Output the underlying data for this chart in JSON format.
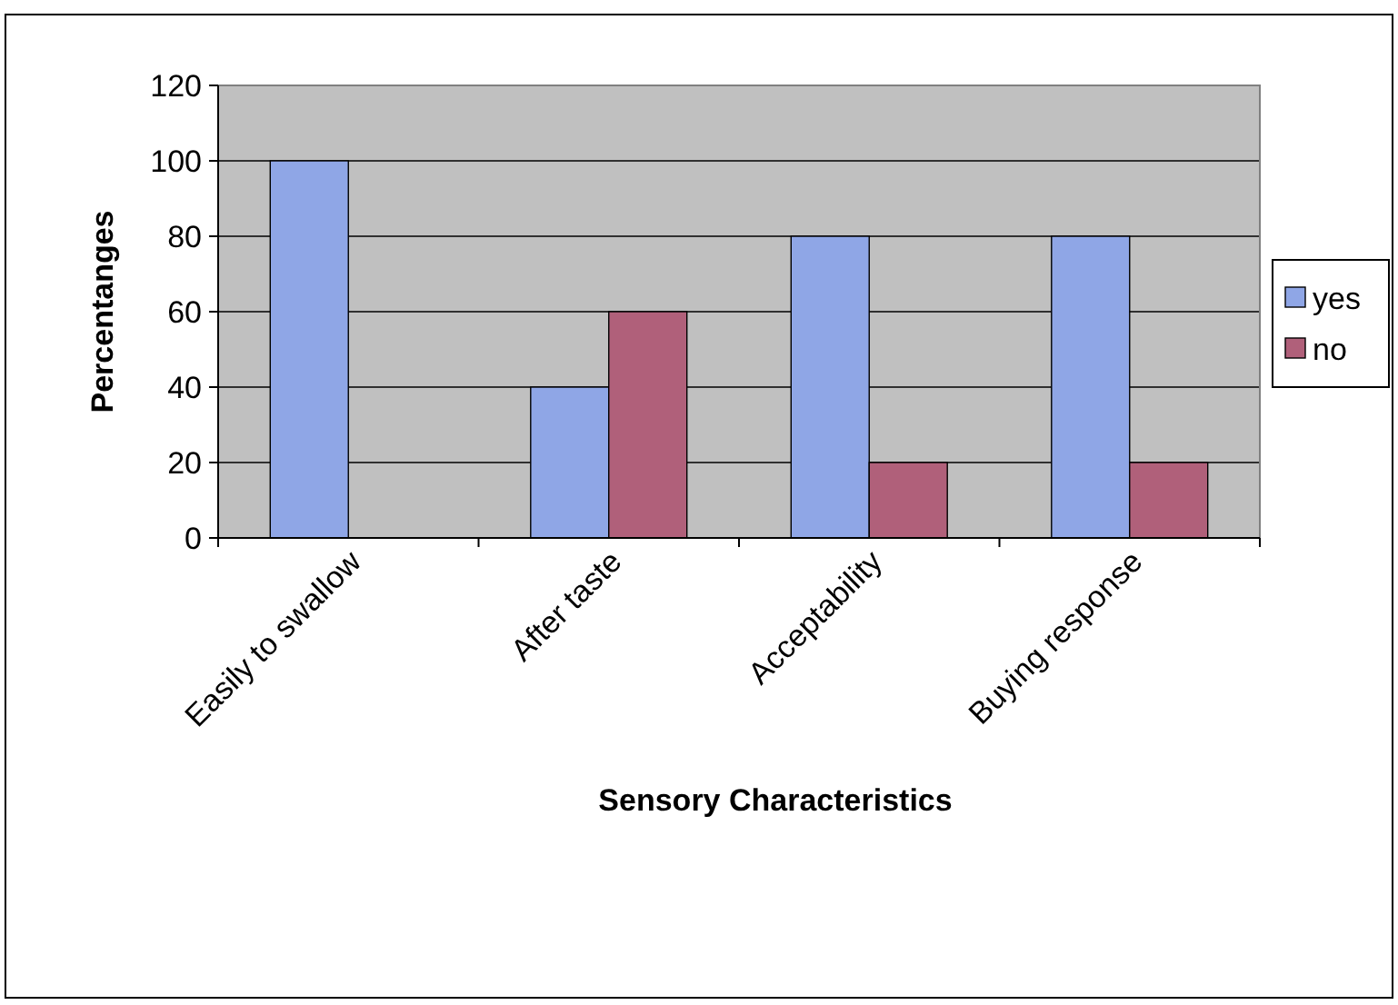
{
  "chart_data": {
    "type": "bar",
    "xlabel": "Sensory Characteristics",
    "ylabel": "Percentanges",
    "categories": [
      "Easily to swallow",
      "After taste",
      "Acceptability",
      "Buying response"
    ],
    "series": [
      {
        "name": "yes",
        "color": "#8fa6e6",
        "values": [
          100,
          40,
          80,
          80
        ]
      },
      {
        "name": "no",
        "color": "#b0607a",
        "values": [
          0,
          60,
          20,
          20
        ]
      }
    ],
    "ylim": [
      0,
      120
    ],
    "yticks": [
      0,
      20,
      40,
      60,
      80,
      100,
      120
    ],
    "grid": "y",
    "legend": "right"
  }
}
